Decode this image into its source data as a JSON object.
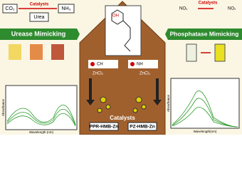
{
  "urease_scheme": {
    "left_product": "CO₂",
    "catalyst": "Catalysts",
    "substrate": "Urea",
    "right_product": "NH₃"
  },
  "phosphatase_scheme": {
    "catalyst": "Catalysts",
    "left_group": "NO₂",
    "right_group": "NO₂"
  },
  "banners": {
    "left": "Urease Mimicking",
    "right": "Phosphatase Mimicking"
  },
  "center": {
    "hydroxyl": "OH",
    "left_reagent": "CH",
    "right_reagent": "NH",
    "left_metal": "ZnCl₂",
    "right_metal": "ZnCl₂",
    "catalysts": "Catalysts",
    "left_product": "PPR-HMB-Zn",
    "right_product": "PZ-HMB-Zn"
  },
  "left_spectrum": {
    "y_label": "Absorbance",
    "x_label": "Wavelength (nm)"
  },
  "right_spectrum": {
    "y_label": "Absorbance",
    "x_label": "Wavelength(nm)"
  }
}
